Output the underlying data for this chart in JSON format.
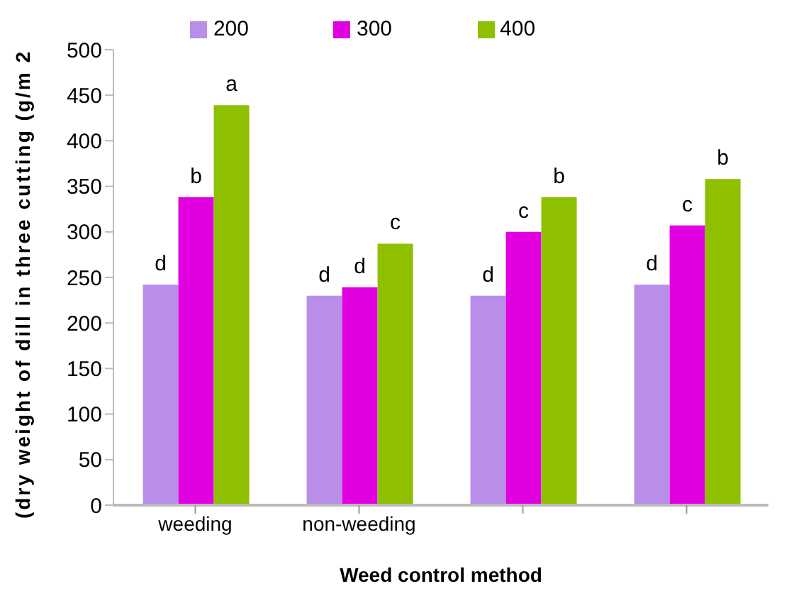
{
  "chart_data": {
    "type": "bar",
    "xlabel": "Weed control method",
    "ylabel": "(dry weight of dill in three cutting (g/m 2",
    "categories": [
      "weeding",
      "non-weeding",
      null,
      null
    ],
    "series": [
      {
        "name": "200",
        "color": "#b98ee8",
        "values": [
          242,
          230,
          230,
          242
        ],
        "value_labels": [
          "d",
          "d",
          "d",
          "d"
        ]
      },
      {
        "name": "300",
        "color": "#e000e0",
        "values": [
          338,
          239,
          300,
          307
        ],
        "value_labels": [
          "b",
          "d",
          "c",
          "c"
        ]
      },
      {
        "name": "400",
        "color": "#8fc000",
        "values": [
          439,
          287,
          338,
          358
        ],
        "value_labels": [
          "a",
          "c",
          "b",
          "b"
        ]
      }
    ],
    "ylim": [
      0,
      500
    ],
    "yticks": [
      0,
      50,
      100,
      150,
      200,
      250,
      300,
      350,
      400,
      450,
      500
    ],
    "grid": false,
    "legend": "top"
  }
}
